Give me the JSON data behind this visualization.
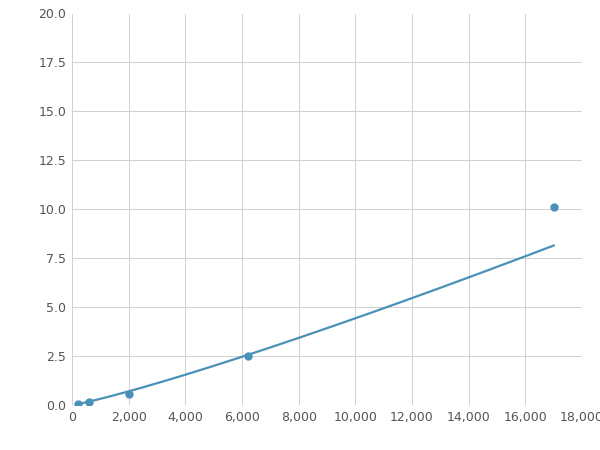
{
  "x_data": [
    200,
    600,
    2000,
    6200,
    17000
  ],
  "y_data": [
    0.07,
    0.13,
    0.55,
    2.5,
    10.1
  ],
  "line_color": "#4a90b8",
  "marker_color": "#4a90b8",
  "marker_size": 5,
  "line_width": 1.6,
  "xlim": [
    0,
    18000
  ],
  "ylim": [
    0,
    20
  ],
  "xticks": [
    0,
    2000,
    4000,
    6000,
    8000,
    10000,
    12000,
    14000,
    16000,
    18000
  ],
  "yticks": [
    0.0,
    2.5,
    5.0,
    7.5,
    10.0,
    12.5,
    15.0,
    17.5,
    20.0
  ],
  "grid_color": "#d0d0d0",
  "background_color": "#ffffff",
  "fig_width": 6.0,
  "fig_height": 4.5,
  "dpi": 100
}
